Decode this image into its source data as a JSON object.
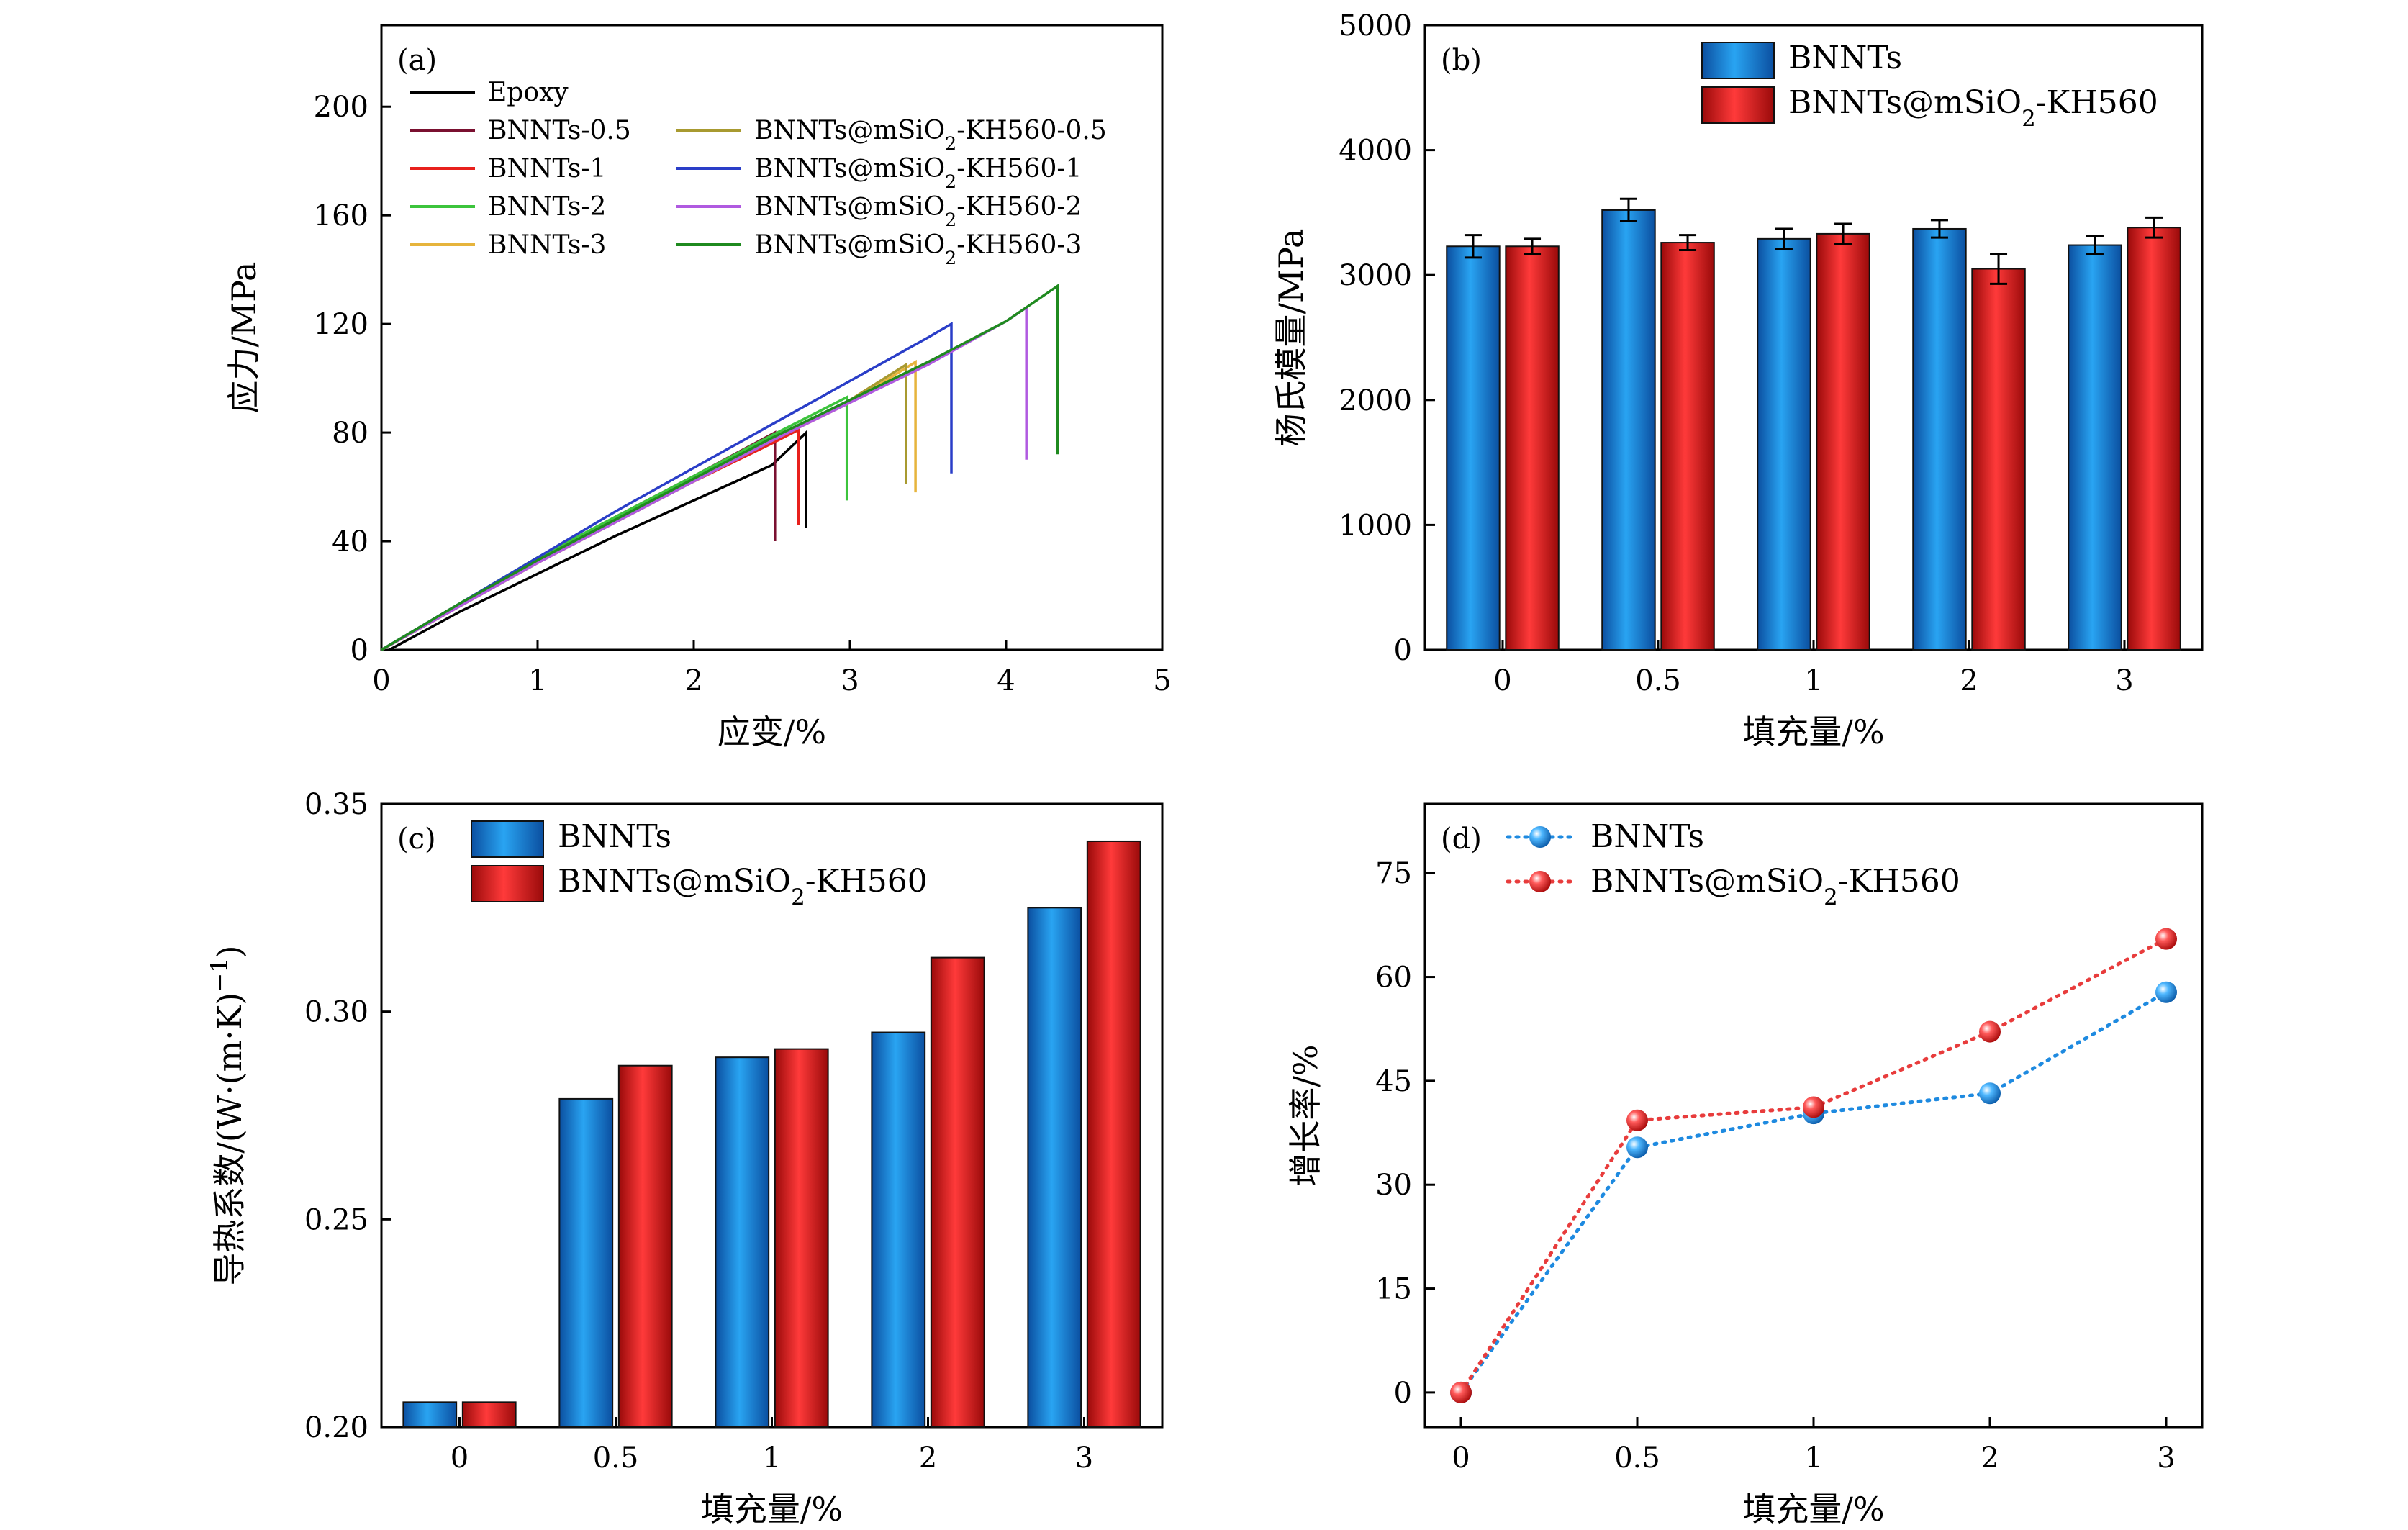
{
  "chart_data": [
    {
      "type": "line",
      "panel_label": "(a)",
      "xlabel": "应变/%",
      "ylabel": "应力/MPa",
      "xlim": [
        0,
        5
      ],
      "ylim": [
        0,
        230
      ],
      "xticks": [
        0,
        1,
        2,
        3,
        4,
        5
      ],
      "yticks": [
        0,
        40,
        80,
        120,
        160,
        200
      ],
      "legend_placement": "top-left, two columns",
      "series": [
        {
          "name": "Epoxy",
          "color": "#000000",
          "points": [
            [
              0.05,
              0
            ],
            [
              0.5,
              14
            ],
            [
              1,
              28
            ],
            [
              1.5,
              42
            ],
            [
              2,
              55
            ],
            [
              2.5,
              68
            ],
            [
              2.72,
              80
            ]
          ],
          "drop_to": 45
        },
        {
          "name": "BNNTs-0.5",
          "color": "#7a1030",
          "points": [
            [
              0,
              0
            ],
            [
              0.5,
              17
            ],
            [
              1,
              33
            ],
            [
              1.5,
              49
            ],
            [
              2,
              64
            ],
            [
              2.52,
              80
            ]
          ],
          "drop_to": 40
        },
        {
          "name": "BNNTs-1",
          "color": "#e8201c",
          "points": [
            [
              0,
              0
            ],
            [
              0.5,
              16
            ],
            [
              1,
              32
            ],
            [
              1.5,
              48
            ],
            [
              2,
              62
            ],
            [
              2.5,
              76
            ],
            [
              2.67,
              81
            ]
          ],
          "drop_to": 46
        },
        {
          "name": "BNNTs-2",
          "color": "#3cc43c",
          "points": [
            [
              0,
              0
            ],
            [
              0.5,
              17
            ],
            [
              1,
              34
            ],
            [
              1.5,
              49
            ],
            [
              2,
              64
            ],
            [
              2.5,
              79
            ],
            [
              2.98,
              93
            ]
          ],
          "drop_to": 55
        },
        {
          "name": "BNNTs-3",
          "color": "#e6b43c",
          "points": [
            [
              0,
              0
            ],
            [
              0.5,
              16
            ],
            [
              1,
              32
            ],
            [
              1.5,
              47
            ],
            [
              2,
              62
            ],
            [
              2.5,
              77
            ],
            [
              3,
              91
            ],
            [
              3.42,
              106
            ]
          ],
          "drop_to": 58
        },
        {
          "name": "BNNTs@mSiO₂-KH560-0.5",
          "color": "#a89a30",
          "points": [
            [
              0,
              0
            ],
            [
              0.5,
              16
            ],
            [
              1,
              32
            ],
            [
              1.5,
              47
            ],
            [
              2,
              62
            ],
            [
              2.5,
              77
            ],
            [
              3,
              92
            ],
            [
              3.36,
              105
            ]
          ],
          "drop_to": 61
        },
        {
          "name": "BNNTs@mSiO₂-KH560-1",
          "color": "#2a3ec8",
          "points": [
            [
              0,
              0
            ],
            [
              0.5,
              17
            ],
            [
              1,
              34
            ],
            [
              1.5,
              51
            ],
            [
              2,
              67
            ],
            [
              2.5,
              83
            ],
            [
              3,
              99
            ],
            [
              3.5,
              115
            ],
            [
              3.65,
              120
            ]
          ],
          "drop_to": 65
        },
        {
          "name": "BNNTs@mSiO₂-KH560-2",
          "color": "#b05ae0",
          "points": [
            [
              0,
              0
            ],
            [
              0.5,
              16
            ],
            [
              1,
              32
            ],
            [
              1.5,
              47
            ],
            [
              2,
              62
            ],
            [
              2.5,
              77
            ],
            [
              3,
              91
            ],
            [
              3.5,
              105
            ],
            [
              4,
              121
            ],
            [
              4.13,
              126
            ]
          ],
          "drop_to": 70
        },
        {
          "name": "BNNTs@mSiO₂-KH560-3",
          "color": "#1f8a1f",
          "points": [
            [
              0,
              0
            ],
            [
              0.5,
              17
            ],
            [
              1,
              33
            ],
            [
              1.5,
              48
            ],
            [
              2,
              63
            ],
            [
              2.5,
              78
            ],
            [
              3,
              92
            ],
            [
              3.5,
              106
            ],
            [
              4,
              121
            ],
            [
              4.33,
              134
            ]
          ],
          "drop_to": 72
        }
      ]
    },
    {
      "type": "bar",
      "panel_label": "(b)",
      "xlabel": "填充量/%",
      "ylabel": "杨氏模量/MPa",
      "categories": [
        "0",
        "0.5",
        "1",
        "2",
        "3"
      ],
      "ylim": [
        0,
        5000
      ],
      "yticks": [
        0,
        1000,
        2000,
        3000,
        4000,
        5000
      ],
      "legend_placement": "top-center",
      "error_bars": true,
      "series": [
        {
          "name": "BNNTs",
          "color": "#1e7ad8",
          "values": [
            3230,
            3520,
            3290,
            3370,
            3240
          ],
          "errors": [
            90,
            90,
            80,
            70,
            70
          ]
        },
        {
          "name": "BNNTs@mSiO₂-KH560",
          "color": "#e02020",
          "values": [
            3230,
            3260,
            3330,
            3050,
            3380
          ],
          "errors": [
            60,
            60,
            80,
            120,
            80
          ]
        }
      ]
    },
    {
      "type": "bar",
      "panel_label": "(c)",
      "xlabel": "填充量/%",
      "ylabel": "导热系数/(W·(m·K)⁻¹)",
      "categories": [
        "0",
        "0.5",
        "1",
        "2",
        "3"
      ],
      "ylim": [
        0.2,
        0.35
      ],
      "yticks": [
        "0.20",
        "0.25",
        "0.30",
        "0.35"
      ],
      "legend_placement": "top-left",
      "series": [
        {
          "name": "BNNTs",
          "color": "#1e7ad8",
          "values": [
            0.206,
            0.279,
            0.289,
            0.295,
            0.325
          ]
        },
        {
          "name": "BNNTs@mSiO₂-KH560",
          "color": "#e02020",
          "values": [
            0.206,
            0.287,
            0.291,
            0.313,
            0.341
          ]
        }
      ]
    },
    {
      "type": "line",
      "panel_label": "(d)",
      "xlabel": "填充量/%",
      "ylabel": "增长率/%",
      "categories": [
        "0",
        "0.5",
        "1",
        "2",
        "3"
      ],
      "ylim": [
        -5,
        85
      ],
      "yticks": [
        0,
        15,
        30,
        45,
        60,
        75
      ],
      "legend_placement": "top-left",
      "series": [
        {
          "name": "BNNTs",
          "color": "#1e8ae0",
          "values": [
            0,
            35.4,
            40.3,
            43.2,
            57.8
          ]
        },
        {
          "name": "BNNTs@mSiO₂-KH560",
          "color": "#e83c3c",
          "values": [
            0,
            39.3,
            41.2,
            52.1,
            65.5
          ]
        }
      ]
    }
  ]
}
